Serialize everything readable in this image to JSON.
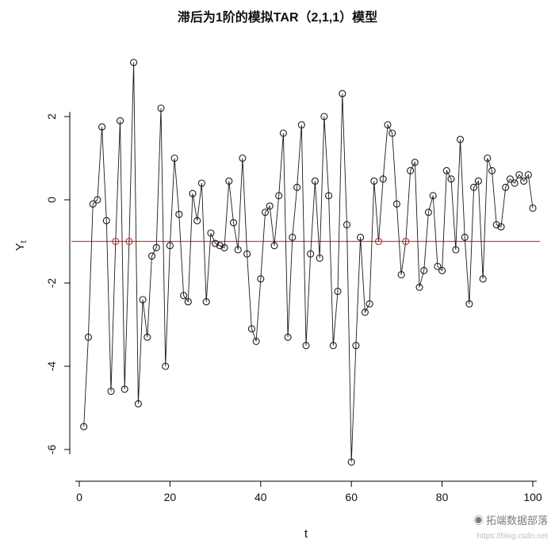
{
  "title": "滞后为1阶的模拟TAR（2,1,1）模型",
  "watermark": {
    "logo": "◉",
    "brand": "拓端数据部落",
    "url": "https://blog.csdn.net"
  },
  "chart_data": {
    "type": "line",
    "marker": "open-circle",
    "title": "滞后为1阶的模拟TAR（2,1,1）模型",
    "xlabel": "t",
    "ylabel_main": "Y",
    "ylabel_sub": "t",
    "xlim": [
      0,
      100
    ],
    "ylim": [
      -6.5,
      3.5
    ],
    "xticks": [
      0,
      20,
      40,
      60,
      80,
      100
    ],
    "yticks": [
      -6,
      -4,
      -2,
      0,
      2
    ],
    "grid": false,
    "legend": "none",
    "line_color": "#1a1a1a",
    "point_color": "#1a1a1a",
    "threshold": {
      "y": -1,
      "color": "#e03a3a"
    },
    "highlight_color": "#a03030",
    "highlight_x": [
      8,
      11,
      66,
      72
    ],
    "x_range": [
      1,
      100
    ],
    "values": [
      -5.45,
      -3.3,
      -0.1,
      0.0,
      1.75,
      -0.5,
      -4.6,
      -1.0,
      1.9,
      -4.55,
      -1.0,
      3.3,
      -4.9,
      -2.4,
      -3.3,
      -1.35,
      -1.15,
      2.2,
      -4.0,
      -1.1,
      1.0,
      -0.35,
      -2.3,
      -2.45,
      0.15,
      -0.5,
      0.4,
      -2.45,
      -0.8,
      -1.05,
      -1.1,
      -1.15,
      0.45,
      -0.55,
      -1.2,
      1.0,
      -1.3,
      -3.1,
      -3.4,
      -1.9,
      -0.3,
      -0.15,
      -1.1,
      0.1,
      1.6,
      -3.3,
      -0.9,
      0.3,
      1.8,
      -3.5,
      -1.3,
      0.45,
      -1.4,
      2.0,
      0.1,
      -3.5,
      -2.2,
      2.55,
      -0.6,
      -6.3,
      -3.5,
      -0.9,
      -2.7,
      -2.5,
      0.45,
      -1.0,
      0.5,
      1.8,
      1.6,
      -0.1,
      -1.8,
      -1.0,
      0.7,
      0.9,
      -2.1,
      -1.7,
      -0.3,
      0.1,
      -1.6,
      -1.7,
      0.7,
      0.5,
      -1.2,
      1.45,
      -0.9,
      -2.5,
      0.3,
      0.45,
      -1.9,
      1.0,
      0.7,
      -0.6,
      -0.65,
      0.3,
      0.5,
      0.4,
      0.6,
      0.45,
      0.6,
      -0.2
    ]
  }
}
